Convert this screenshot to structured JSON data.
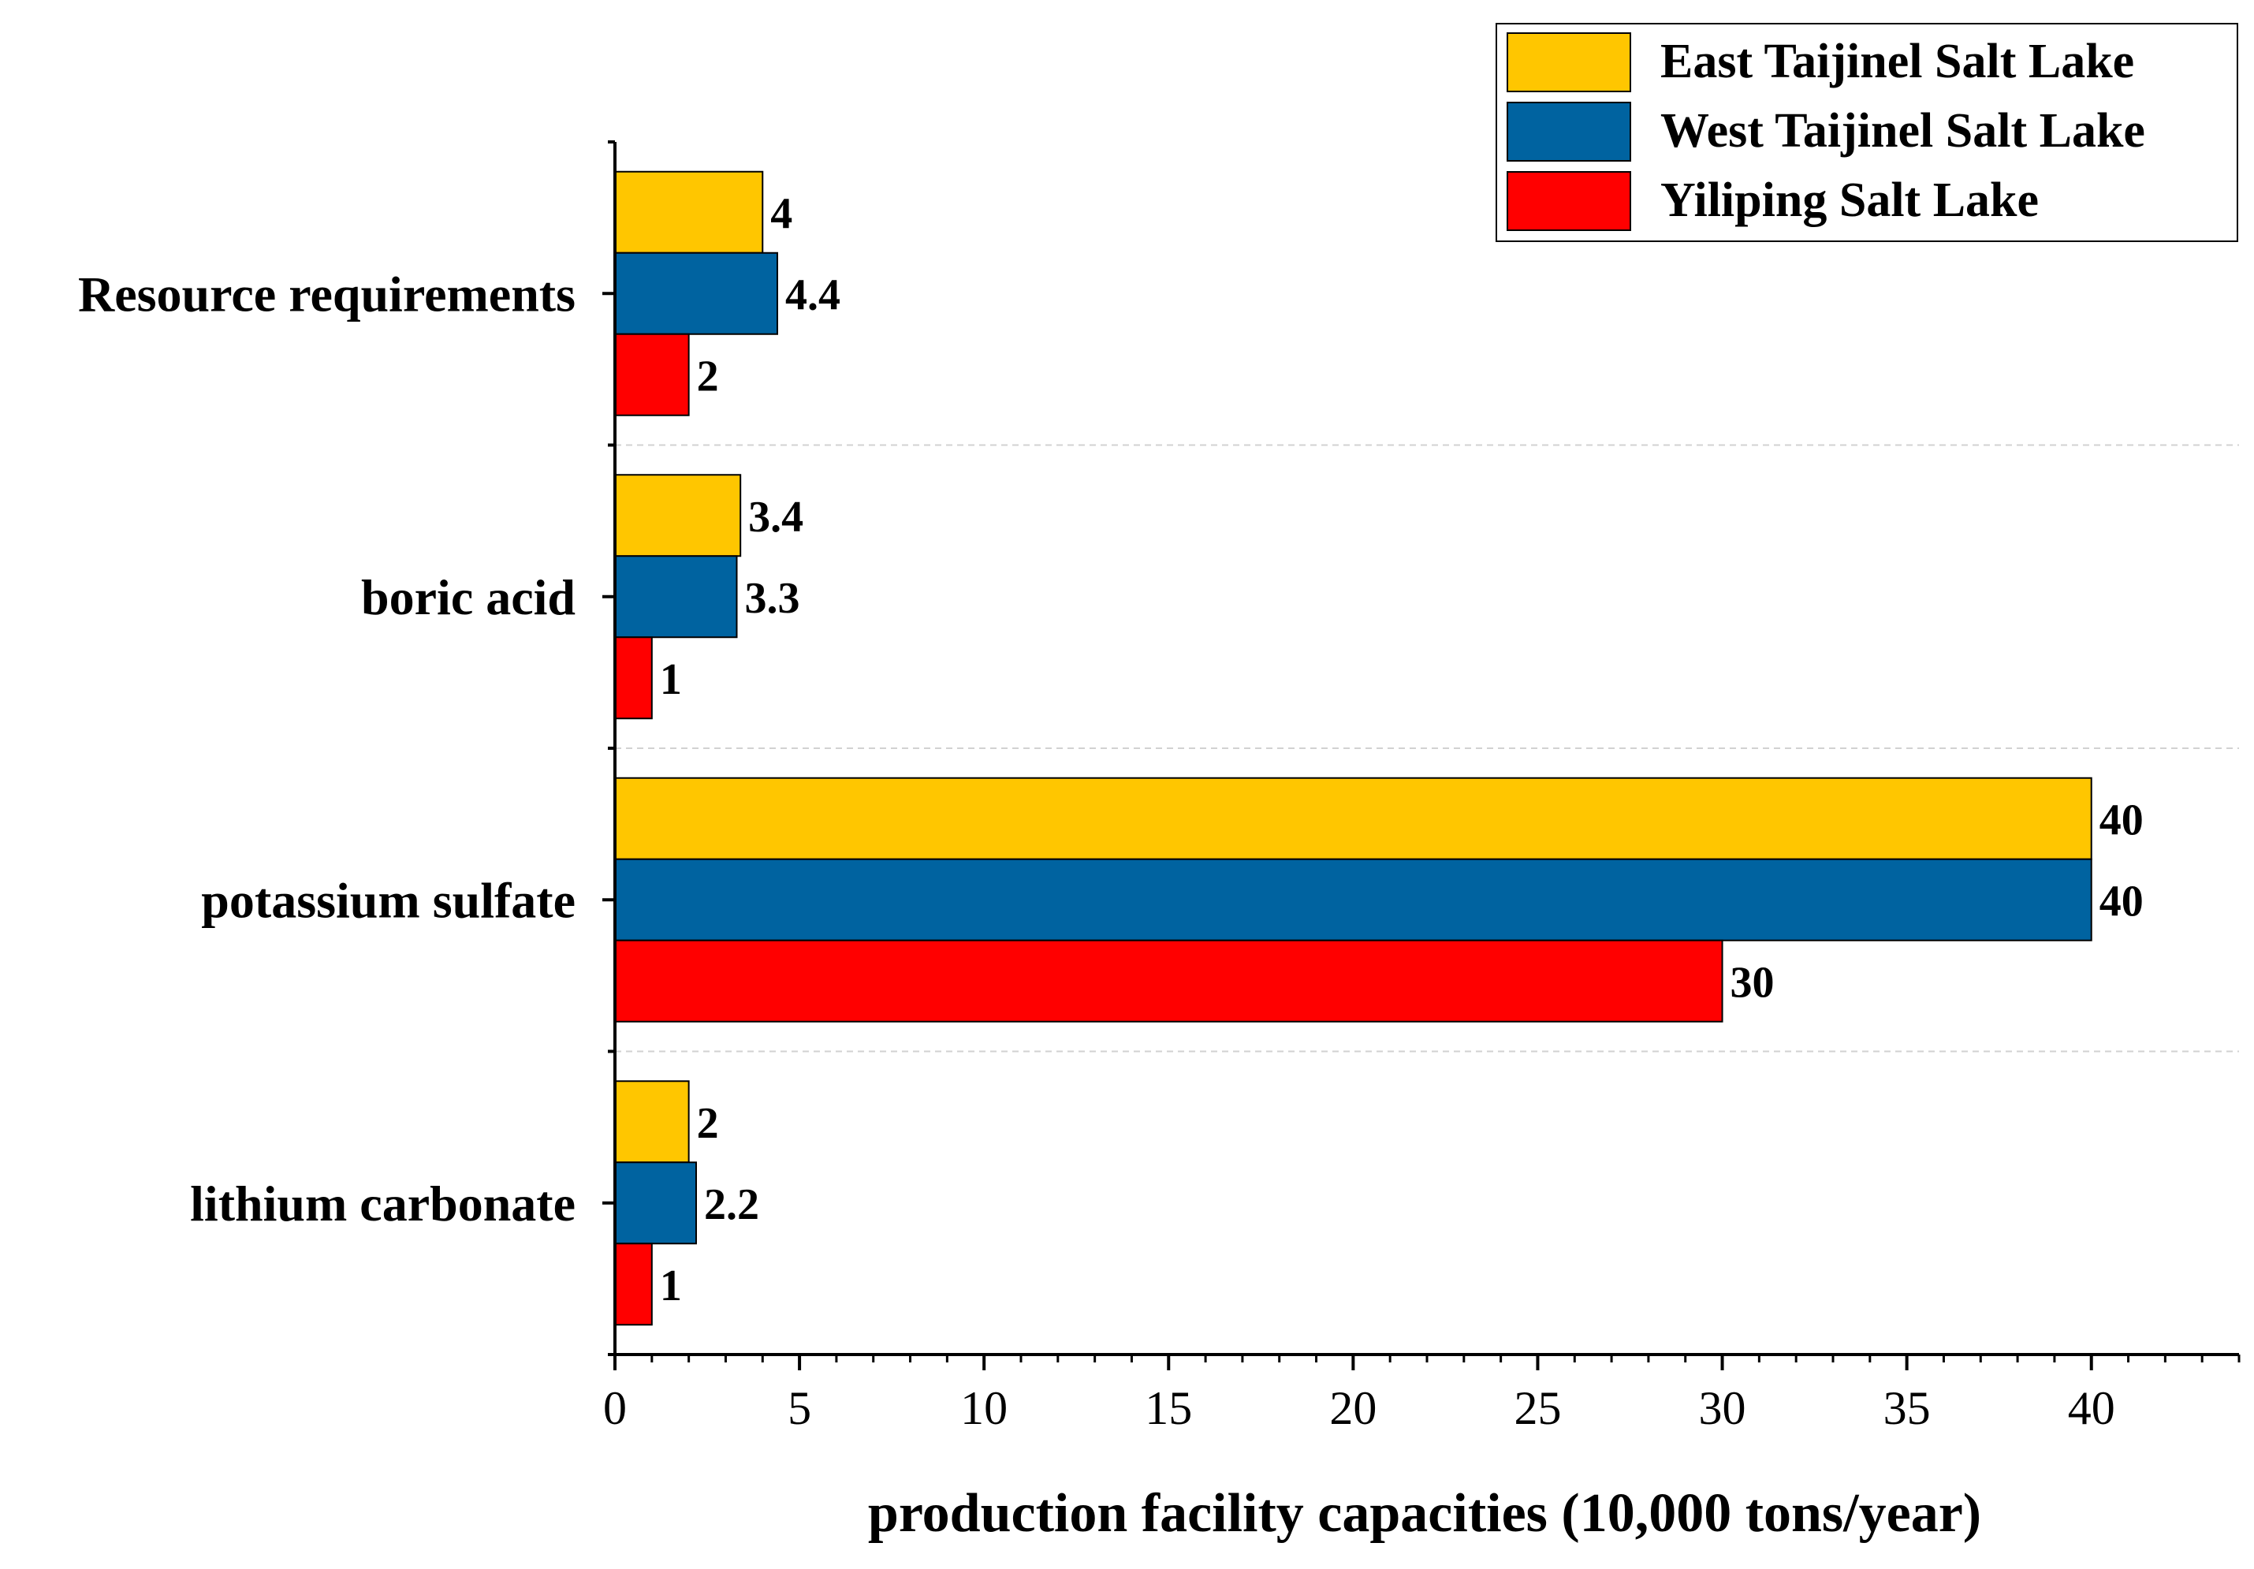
{
  "chart_data": {
    "type": "bar",
    "orientation": "horizontal",
    "categories": [
      "Resource requirements",
      "boric acid",
      "potassium sulfate",
      "lithium carbonate"
    ],
    "series": [
      {
        "name": "East Taijinel Salt Lake",
        "color": "#FFC600",
        "values": [
          4,
          3.4,
          40,
          2
        ],
        "labels": [
          "4",
          "3.4",
          "40",
          "2"
        ]
      },
      {
        "name": "West Taijinel Salt Lake",
        "color": "#0063A0",
        "values": [
          4.4,
          3.3,
          40,
          2.2
        ],
        "labels": [
          "4.4",
          "3.3",
          "40",
          "2.2"
        ]
      },
      {
        "name": "Yiliping Salt Lake",
        "color": "#FF0000",
        "values": [
          2,
          1,
          30,
          1
        ],
        "labels": [
          "2",
          "1",
          "30",
          "1"
        ]
      }
    ],
    "title": "",
    "xlabel": "production facility capacities (10,000 tons/year)",
    "ylabel": "",
    "xlim": [
      0,
      44
    ],
    "xticks": [
      0,
      5,
      10,
      15,
      20,
      25,
      30,
      35,
      40
    ],
    "xtick_labels": [
      "0",
      "5",
      "10",
      "15",
      "20",
      "25",
      "30",
      "35",
      "40"
    ],
    "minor_tick_step": 1,
    "grid": "dashed separators between categories",
    "legend_position": "top-right"
  }
}
